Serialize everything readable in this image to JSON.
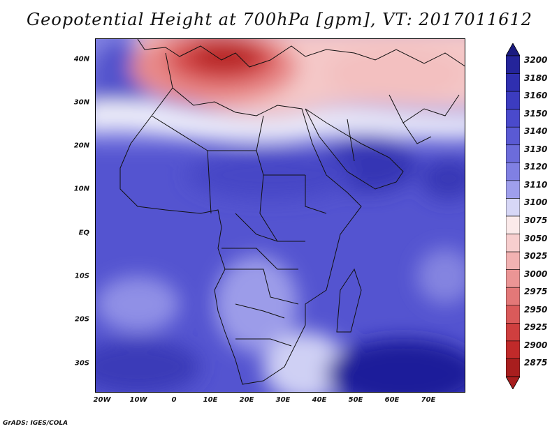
{
  "title": "Geopotential Height at 700hPa [gpm], VT: 2017011612",
  "credit": "GrADS: IGES/COLA",
  "map": {
    "projection": "latlon",
    "lon_range": [
      -22,
      80
    ],
    "lat_range": [
      -37,
      45
    ],
    "lat_ticks": [
      "40N",
      "30N",
      "20N",
      "10N",
      "EQ",
      "10S",
      "20S",
      "30S"
    ],
    "lon_ticks": [
      "20W",
      "10W",
      "0",
      "10E",
      "20E",
      "30E",
      "40E",
      "50E",
      "60E",
      "70E"
    ],
    "field": "Geopotential Height 700hPa",
    "units": "gpm"
  },
  "colorbar": {
    "levels": [
      "3200",
      "3180",
      "3160",
      "3150",
      "3140",
      "3130",
      "3120",
      "3110",
      "3100",
      "3075",
      "3050",
      "3025",
      "3000",
      "2975",
      "2950",
      "2925",
      "2900",
      "2875"
    ],
    "colors": [
      "#24249a",
      "#2f2fb0",
      "#3c3cc0",
      "#4a4acc",
      "#5a5ad4",
      "#6c6cdb",
      "#8080e3",
      "#9f9fec",
      "#d7d7f6",
      "#fbeaea",
      "#f7cece",
      "#f2b2b2",
      "#eb9595",
      "#e37878",
      "#da5a5a",
      "#cf3f3f",
      "#c02a2a",
      "#a81e1e"
    ],
    "top_arrow_color": "#1a1a80",
    "bottom_arrow_color": "#a81e1e"
  }
}
